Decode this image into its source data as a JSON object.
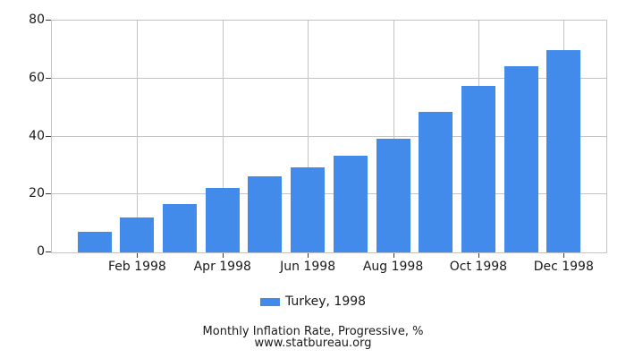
{
  "chart_data": {
    "type": "bar",
    "title": "Monthly Inflation Rate, Progressive, %",
    "source": "www.statbureau.org",
    "legend": {
      "label": "Turkey, 1998",
      "position": "bottom-center"
    },
    "categories": [
      "Jan 1998",
      "Feb 1998",
      "Mar 1998",
      "Apr 1998",
      "May 1998",
      "Jun 1998",
      "Jul 1998",
      "Aug 1998",
      "Sep 1998",
      "Oct 1998",
      "Nov 1998",
      "Dec 1998"
    ],
    "values": [
      7.2,
      11.9,
      16.6,
      22.1,
      26.3,
      29.3,
      33.5,
      39.1,
      48.4,
      57.5,
      64.3,
      69.9
    ],
    "unit": "%",
    "ylim": [
      0,
      80
    ],
    "y_ticks": [
      0,
      20,
      40,
      60,
      80
    ],
    "x_tick_labels": [
      "Feb 1998",
      "Apr 1998",
      "Jun 1998",
      "Aug 1998",
      "Oct 1998",
      "Dec 1998"
    ],
    "x_tick_months": [
      2,
      4,
      6,
      8,
      10,
      12
    ],
    "grid": true,
    "legend_position": "bottom"
  },
  "colors": {
    "bar": "#428BEB",
    "grid": "#c4c4c4",
    "text": "#1a1a1a"
  }
}
